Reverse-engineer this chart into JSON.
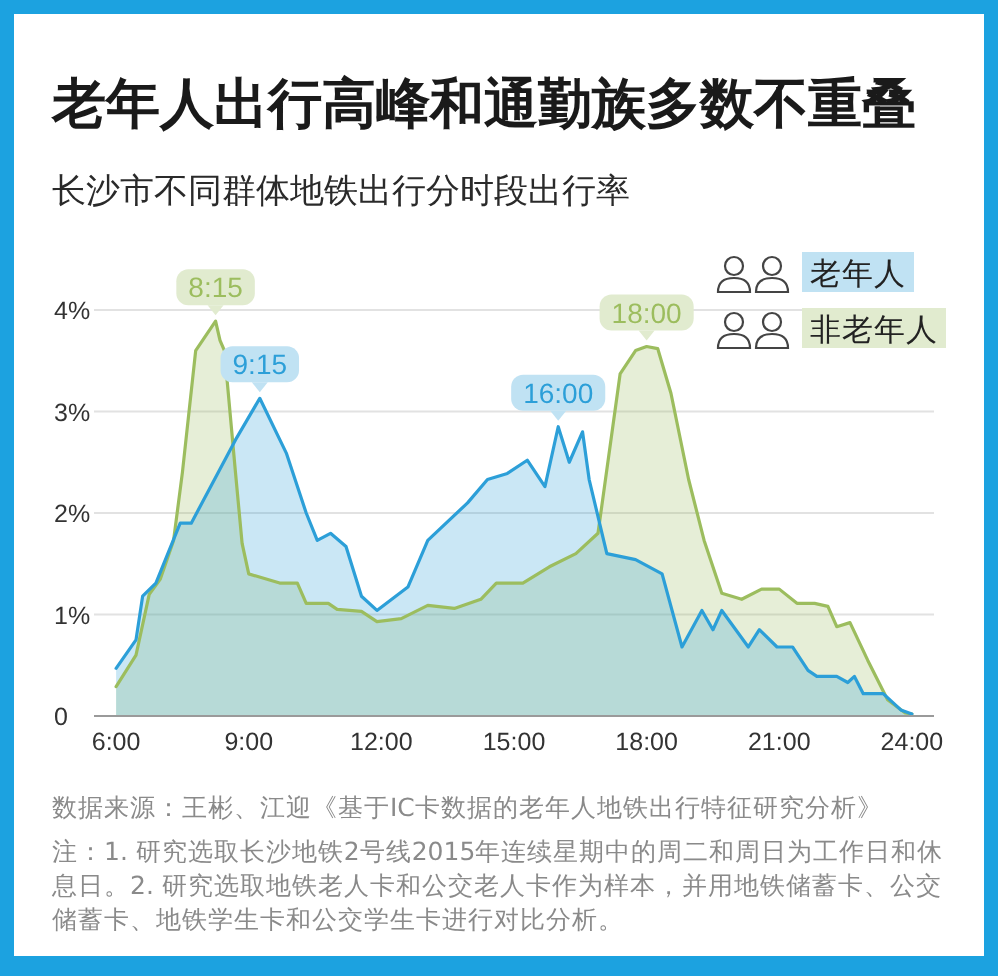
{
  "chart_data": {
    "type": "area",
    "title": "老年人出行高峰和通勤族多数不重叠",
    "subtitle": "长沙市不同群体地铁出行分时段出行率",
    "series": [
      {
        "name": "老年人",
        "color": "#2c9fd8",
        "x": [
          6,
          6.45,
          6.6,
          6.9,
          7.45,
          7.7,
          8.7,
          9.25,
          9.85,
          10.3,
          10.55,
          10.85,
          11.2,
          11.55,
          11.9,
          12.6,
          13.05,
          13.95,
          14.4,
          14.85,
          15.3,
          15.7,
          16,
          16.25,
          16.55,
          16.7,
          17.1,
          17.75,
          18.35,
          18.8,
          19.25,
          19.5,
          19.7,
          20.3,
          20.55,
          20.95,
          21.3,
          21.65,
          21.85,
          22.3,
          22.55,
          22.7,
          22.9,
          23.35,
          23.75,
          24
        ],
        "values": [
          0.47,
          0.75,
          1.18,
          1.31,
          1.9,
          1.9,
          2.72,
          3.13,
          2.59,
          2.0,
          1.73,
          1.8,
          1.67,
          1.18,
          1.04,
          1.27,
          1.73,
          2.1,
          2.33,
          2.39,
          2.52,
          2.26,
          2.85,
          2.5,
          2.8,
          2.33,
          1.6,
          1.54,
          1.4,
          0.68,
          1.04,
          0.85,
          1.04,
          0.68,
          0.85,
          0.68,
          0.68,
          0.45,
          0.39,
          0.39,
          0.33,
          0.39,
          0.22,
          0.22,
          0.06,
          0.02
        ]
      },
      {
        "name": "非老年人",
        "color": "#9cbd5e",
        "x": [
          6,
          6.45,
          6.75,
          7.0,
          7.3,
          7.5,
          7.8,
          8.25,
          8.35,
          8.45,
          8.7,
          8.85,
          9.0,
          9.7,
          10.1,
          10.3,
          10.8,
          11.0,
          11.55,
          11.9,
          12.45,
          13.05,
          13.65,
          14.25,
          14.6,
          15.2,
          15.8,
          16.4,
          16.9,
          17.4,
          17.75,
          18.0,
          18.25,
          18.55,
          18.95,
          19.3,
          19.7,
          20.15,
          20.6,
          21.0,
          21.4,
          21.8,
          22.1,
          22.3,
          22.6,
          23.0,
          23.45,
          23.85,
          24
        ],
        "values": [
          0.29,
          0.6,
          1.2,
          1.35,
          1.73,
          2.4,
          3.6,
          3.89,
          3.7,
          3.6,
          2.4,
          1.7,
          1.4,
          1.31,
          1.31,
          1.11,
          1.11,
          1.05,
          1.03,
          0.93,
          0.96,
          1.09,
          1.06,
          1.15,
          1.31,
          1.31,
          1.47,
          1.6,
          1.8,
          3.37,
          3.6,
          3.64,
          3.62,
          3.18,
          2.33,
          1.73,
          1.21,
          1.15,
          1.25,
          1.25,
          1.11,
          1.11,
          1.08,
          0.88,
          0.92,
          0.55,
          0.16,
          0.03,
          0.02
        ]
      }
    ],
    "xlim": [
      5.5,
      24.5
    ],
    "xticks": [
      {
        "value": 6,
        "label": "6:00"
      },
      {
        "value": 9,
        "label": "9:00"
      },
      {
        "value": 12,
        "label": "12:00"
      },
      {
        "value": 15,
        "label": "15:00"
      },
      {
        "value": 18,
        "label": "18:00"
      },
      {
        "value": 21,
        "label": "21:00"
      },
      {
        "value": 24,
        "label": "24:00"
      }
    ],
    "ylim": [
      0,
      4
    ],
    "yticks": [
      0,
      {
        "value": 1,
        "label": "1%"
      },
      {
        "value": 2,
        "label": "2%"
      },
      {
        "value": 3,
        "label": "3%"
      },
      {
        "value": 4,
        "label": "4%"
      }
    ],
    "grid": "y",
    "legend": "top right",
    "annotations": [
      {
        "text": "8:15",
        "x": 8.25,
        "y": 3.89
      },
      {
        "text": "9:15",
        "x": 9.25,
        "y": 3.13
      },
      {
        "text": "16:00",
        "x": 16,
        "y": 2.85
      },
      {
        "text": "18:00",
        "x": 18,
        "y": 3.64
      },
      "数据来源：王彬、江迎《基于IC卡数据的老年人地铁出行特征研究分析》",
      "注：1. 研究选取长沙地铁2号线2015年连续星期中的周二和周日为工作日和休息日。2. 研究选取地铁老人卡和公交老人卡作为样本，并用地铁储蓄卡、公交储蓄卡、地铁学生卡和公交学生卡进行对比分析。"
    ]
  }
}
